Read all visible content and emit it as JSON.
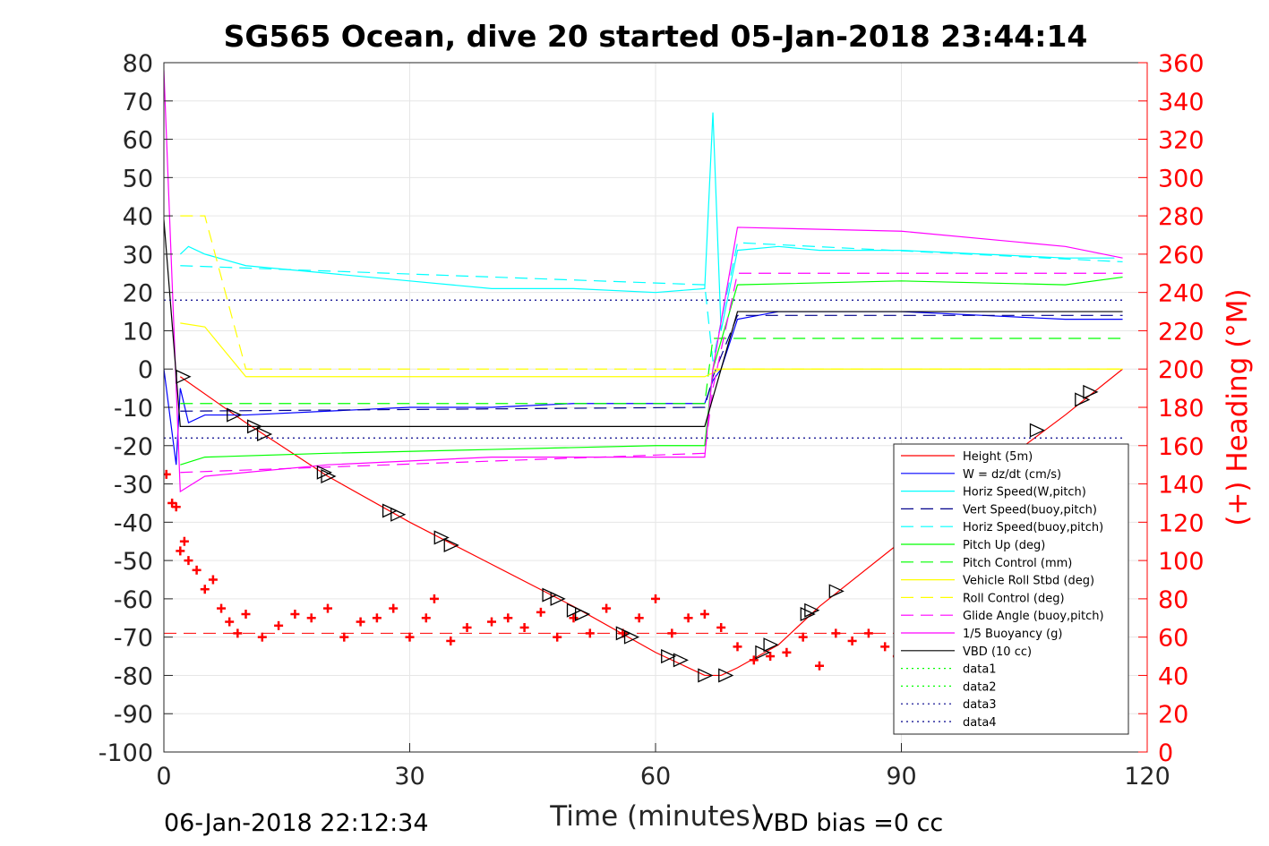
{
  "chart_data": {
    "type": "line",
    "title": "SG565 Ocean, dive 20 started 05-Jan-2018 23:44:14",
    "xlabel": "Time (minutes)",
    "ylabel": "",
    "y2label": "(+) Heading (°M)",
    "footer_left": "06-Jan-2018 22:12:34",
    "footer_right": "VBD bias =0 cc",
    "xlim": [
      0,
      120
    ],
    "ylim": [
      -100,
      80
    ],
    "y2lim": [
      0,
      360
    ],
    "xticks": [
      0,
      30,
      60,
      90,
      120
    ],
    "yticks": [
      80,
      70,
      60,
      50,
      40,
      30,
      20,
      10,
      0,
      -10,
      -20,
      -30,
      -40,
      -50,
      -60,
      -70,
      -80,
      -90,
      -100
    ],
    "y2ticks": [
      360,
      340,
      320,
      300,
      280,
      260,
      240,
      220,
      200,
      180,
      160,
      140,
      120,
      100,
      80,
      60,
      40,
      20,
      0
    ],
    "grid": true,
    "legend_position": "bottom-right",
    "series": [
      {
        "name": "Height (5m)",
        "color": "#ff0000",
        "style": "solid",
        "x": [
          2,
          10,
          20,
          30,
          40,
          50,
          60,
          66,
          68,
          70,
          75,
          80,
          90,
          100,
          110,
          117
        ],
        "y": [
          -2,
          -14,
          -28,
          -40,
          -51,
          -62,
          -74,
          -80,
          -80,
          -78,
          -72,
          -62,
          -45,
          -28,
          -12,
          0
        ]
      },
      {
        "name": "W = dz/dt (cm/s)",
        "color": "#0000ff",
        "style": "solid",
        "x": [
          0,
          1.5,
          2,
          3,
          5,
          10,
          20,
          30,
          40,
          50,
          60,
          66,
          67,
          68,
          70,
          75,
          80,
          90,
          100,
          110,
          117
        ],
        "y": [
          0,
          -25,
          -5,
          -14,
          -12,
          -12,
          -11,
          -10,
          -10,
          -9,
          -9,
          -9,
          -3,
          0,
          13,
          15,
          15,
          15,
          14,
          13,
          13
        ]
      },
      {
        "name": "Horiz Speed(W,pitch)",
        "color": "#00ffff",
        "style": "solid",
        "x": [
          2,
          3,
          5,
          10,
          20,
          30,
          40,
          50,
          60,
          66,
          67,
          68,
          70,
          75,
          80,
          90,
          100,
          110,
          116
        ],
        "y": [
          30,
          32,
          30,
          27,
          25,
          23,
          21,
          21,
          20,
          21,
          67,
          10,
          31,
          32,
          31,
          31,
          30,
          29,
          29
        ]
      },
      {
        "name": "Vert Speed(buoy,pitch)",
        "color": "#00008b",
        "style": "dashed",
        "x": [
          2,
          66,
          67,
          70,
          117
        ],
        "y": [
          -11,
          -10,
          -2,
          14,
          14
        ]
      },
      {
        "name": "Horiz Speed(buoy,pitch)",
        "color": "#00ffff",
        "style": "dashed",
        "x": [
          2,
          66,
          67,
          70,
          117
        ],
        "y": [
          27,
          22,
          2,
          33,
          28
        ]
      },
      {
        "name": "Pitch Up (deg)",
        "color": "#00ff00",
        "style": "solid",
        "x": [
          2,
          5,
          20,
          40,
          60,
          66,
          67,
          70,
          90,
          110,
          117
        ],
        "y": [
          -25,
          -23,
          -22,
          -21,
          -20,
          -20,
          0,
          22,
          23,
          22,
          24
        ]
      },
      {
        "name": "Pitch Control (mm)",
        "color": "#00ff00",
        "style": "dashed",
        "x": [
          2,
          66,
          67,
          117
        ],
        "y": [
          -9,
          -9,
          8,
          8
        ]
      },
      {
        "name": "Vehicle Roll Stbd (deg)",
        "color": "#ffff00",
        "style": "solid",
        "x": [
          2,
          5,
          10,
          20,
          40,
          66,
          68,
          90,
          117
        ],
        "y": [
          12,
          11,
          -2,
          -2,
          -2,
          -2,
          0,
          0,
          0
        ]
      },
      {
        "name": "Roll Control (deg)",
        "color": "#ffff00",
        "style": "dashed",
        "x": [
          2,
          5,
          10,
          66,
          117
        ],
        "y": [
          40,
          40,
          0,
          0,
          0
        ]
      },
      {
        "name": "Glide Angle (buoy,pitch)",
        "color": "#ff00ff",
        "style": "dashed",
        "x": [
          2,
          66,
          67,
          70,
          117
        ],
        "y": [
          -27,
          -22,
          -5,
          25,
          25
        ]
      },
      {
        "name": "1/5 Buoyancy (g)",
        "color": "#ff00ff",
        "style": "solid",
        "x": [
          0,
          2,
          5,
          20,
          40,
          66,
          67,
          70,
          90,
          110,
          117
        ],
        "y": [
          78,
          -32,
          -28,
          -25,
          -23,
          -23,
          0,
          37,
          36,
          32,
          29
        ]
      },
      {
        "name": "VBD (10 cc)",
        "color": "#000000",
        "style": "solid",
        "x": [
          0,
          2,
          66,
          68,
          70,
          117
        ],
        "y": [
          39,
          -15,
          -15,
          0,
          15,
          15
        ]
      },
      {
        "name": "data1",
        "color": "#00ff00",
        "style": "dotted",
        "x": [],
        "y": []
      },
      {
        "name": "data2",
        "color": "#00ff00",
        "style": "dotted",
        "x": [],
        "y": []
      },
      {
        "name": "data3",
        "color": "#00008b",
        "style": "dotted",
        "x": [
          0,
          117
        ],
        "y": [
          18,
          18
        ]
      },
      {
        "name": "data4",
        "color": "#00008b",
        "style": "dotted",
        "x": [
          0,
          117
        ],
        "y": [
          -18,
          -18
        ]
      }
    ],
    "heading_series": {
      "name": "(+) Heading",
      "color": "#ff0000",
      "marker": "+",
      "axis": "right",
      "x": [
        0.3,
        1,
        1.5,
        2,
        2.5,
        3,
        4,
        5,
        6,
        7,
        8,
        9,
        10,
        12,
        14,
        16,
        18,
        20,
        22,
        24,
        26,
        28,
        30,
        32,
        33,
        35,
        37,
        40,
        42,
        44,
        46,
        48,
        50,
        52,
        54,
        56,
        58,
        60,
        62,
        64,
        66,
        68,
        70,
        72,
        74,
        76,
        78,
        80,
        82,
        84,
        86,
        88,
        89.5
      ],
      "y": [
        145,
        130,
        128,
        105,
        110,
        100,
        95,
        85,
        90,
        75,
        68,
        62,
        72,
        60,
        66,
        72,
        70,
        75,
        60,
        68,
        70,
        75,
        60,
        70,
        80,
        58,
        65,
        68,
        70,
        65,
        73,
        60,
        70,
        62,
        75,
        62,
        70,
        80,
        62,
        70,
        72,
        65,
        55,
        48,
        50,
        52,
        60,
        45,
        62,
        58,
        62,
        55,
        50
      ]
    },
    "reference_lines": [
      {
        "name": "heading-target",
        "color": "#ff0000",
        "style": "dashed",
        "axis": "right",
        "y": 62,
        "x": [
          0,
          117
        ]
      }
    ],
    "depth_markers": {
      "color": "#000000",
      "x": [
        2.3,
        8.5,
        11,
        12.2,
        19.5,
        20,
        27.5,
        28.5,
        33.8,
        35,
        47,
        48,
        50,
        51,
        56,
        57,
        61.5,
        63,
        66,
        68.5,
        73,
        74,
        78.5,
        79,
        82,
        90,
        106.5,
        112,
        113
      ],
      "y": [
        -2,
        -12,
        -15,
        -17,
        -27,
        -28,
        -37,
        -38,
        -44,
        -46,
        -59,
        -60,
        -63,
        -64,
        -69,
        -70,
        -75,
        -76,
        -80,
        -80,
        -74,
        -72,
        -64,
        -63,
        -58,
        -45,
        -16,
        -8,
        -6
      ]
    }
  }
}
